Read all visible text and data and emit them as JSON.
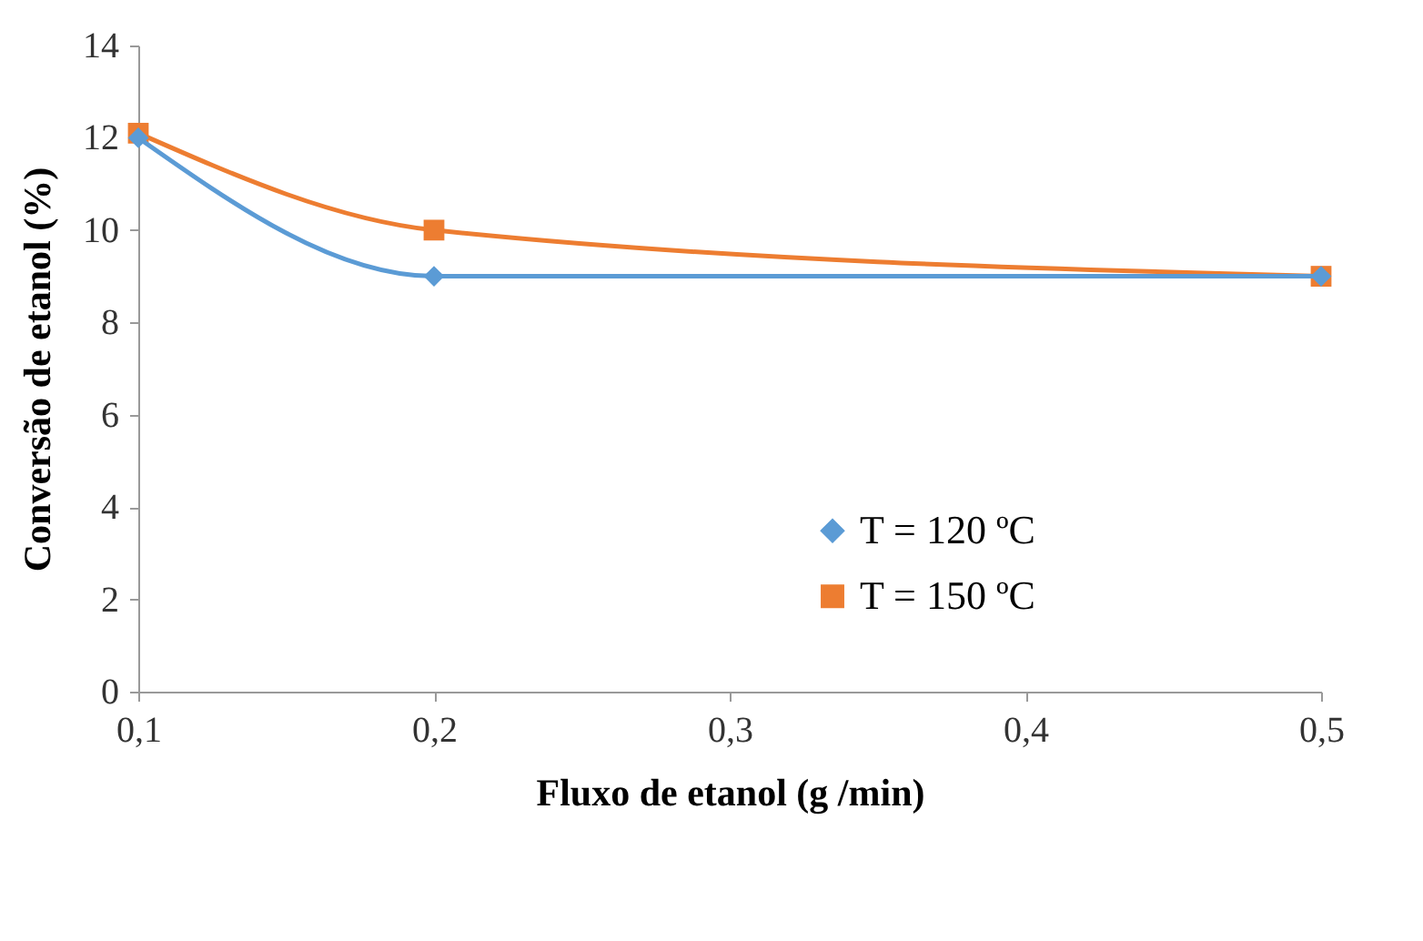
{
  "chart_data": {
    "type": "line",
    "xlabel": "Fluxo de etanol (g /min)",
    "ylabel": "Conversão de etanol (%)",
    "x": [
      0.1,
      0.2,
      0.5
    ],
    "series": [
      {
        "name": "T = 120 ºC",
        "color": "#5b9bd5",
        "marker": "diamond",
        "values": [
          12,
          9,
          9
        ]
      },
      {
        "name": "T = 150 ºC",
        "color": "#ed7d31",
        "marker": "square",
        "values": [
          12.1,
          10,
          9
        ]
      }
    ],
    "xlim": [
      0.1,
      0.5
    ],
    "xticks": [
      {
        "value": 0.1,
        "label": "0,1"
      },
      {
        "value": 0.2,
        "label": "0,2"
      },
      {
        "value": 0.3,
        "label": "0,3"
      },
      {
        "value": 0.4,
        "label": "0,4"
      },
      {
        "value": 0.5,
        "label": "0,5"
      }
    ],
    "ylim": [
      0,
      14
    ],
    "yticks": [
      0,
      2,
      4,
      6,
      8,
      10,
      12,
      14
    ],
    "grid": false,
    "legend": "bottom right",
    "line_style": "solid"
  }
}
